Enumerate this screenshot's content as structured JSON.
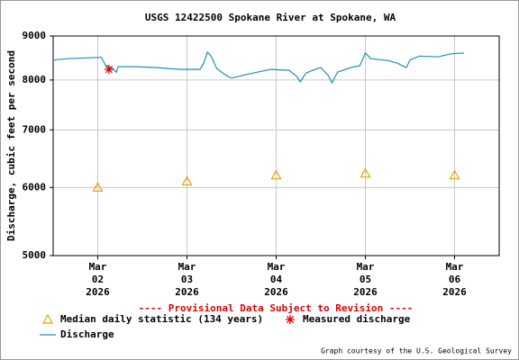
{
  "chart_data": {
    "type": "line",
    "title": "USGS 12422500 Spokane River at Spokane, WA",
    "y_label": "Discharge, cubic feet per second",
    "annotation": "---- Provisional Data Subject to Revision ----",
    "credit": "Graph courtesy of the U.S. Geological Survey",
    "log_scale_y": true,
    "grid": true,
    "ylim": [
      5000,
      9000
    ],
    "yticks": [
      5000,
      6000,
      7000,
      8000,
      9000
    ],
    "xlim": [
      "2026-03-01T12:00",
      "2026-03-06T12:00"
    ],
    "xticks": [
      {
        "value": "2026-03-02T00:00",
        "label": [
          "Mar",
          "02",
          "2026"
        ]
      },
      {
        "value": "2026-03-03T00:00",
        "label": [
          "Mar",
          "03",
          "2026"
        ]
      },
      {
        "value": "2026-03-04T00:00",
        "label": [
          "Mar",
          "04",
          "2026"
        ]
      },
      {
        "value": "2026-03-05T00:00",
        "label": [
          "Mar",
          "05",
          "2026"
        ]
      },
      {
        "value": "2026-03-06T00:00",
        "label": [
          "Mar",
          "06",
          "2026"
        ]
      }
    ],
    "series": [
      {
        "name": "Discharge",
        "color": "#1a8fc0",
        "marker": "line",
        "x": [
          "2026-03-01T12:00",
          "2026-03-01T16:00",
          "2026-03-01T22:00",
          "2026-03-02T01:00",
          "2026-03-02T02:00",
          "2026-03-02T04:00",
          "2026-03-02T05:00",
          "2026-03-02T05:30",
          "2026-03-02T10:00",
          "2026-03-02T16:00",
          "2026-03-02T22:00",
          "2026-03-03T03:30",
          "2026-03-03T04:30",
          "2026-03-03T05:30",
          "2026-03-03T06:30",
          "2026-03-03T08:00",
          "2026-03-03T10:30",
          "2026-03-03T12:00",
          "2026-03-03T15:00",
          "2026-03-03T22:30",
          "2026-03-04T03:30",
          "2026-03-04T05:30",
          "2026-03-04T06:30",
          "2026-03-04T08:00",
          "2026-03-04T10:30",
          "2026-03-04T12:00",
          "2026-03-04T14:00",
          "2026-03-04T15:00",
          "2026-03-04T16:30",
          "2026-03-04T20:00",
          "2026-03-04T22:30",
          "2026-03-05T00:00",
          "2026-03-05T01:30",
          "2026-03-05T06:00",
          "2026-03-05T08:30",
          "2026-03-05T11:00",
          "2026-03-05T12:00",
          "2026-03-05T14:30",
          "2026-03-05T19:30",
          "2026-03-05T23:00",
          "2026-03-06T02:30"
        ],
        "values": [
          8440,
          8470,
          8490,
          8500,
          8330,
          8250,
          8170,
          8290,
          8290,
          8270,
          8230,
          8230,
          8370,
          8620,
          8530,
          8250,
          8100,
          8040,
          8100,
          8230,
          8210,
          8080,
          7960,
          8150,
          8230,
          8270,
          8100,
          7940,
          8170,
          8270,
          8310,
          8600,
          8470,
          8430,
          8370,
          8270,
          8440,
          8530,
          8510,
          8580,
          8600
        ]
      },
      {
        "name": "Median daily statistic (134 years)",
        "color": "#e8a000",
        "marker": "triangle",
        "x": [
          "2026-03-02T00:00",
          "2026-03-03T00:00",
          "2026-03-04T00:00",
          "2026-03-05T00:00",
          "2026-03-06T00:00"
        ],
        "values": [
          6000,
          6100,
          6200,
          6230,
          6200
        ]
      },
      {
        "name": "Measured discharge",
        "color": "#e00000",
        "marker": "star",
        "x": [
          "2026-03-02T03:00"
        ],
        "values": [
          8230
        ]
      }
    ],
    "legend_order": [
      1,
      2,
      0
    ]
  }
}
